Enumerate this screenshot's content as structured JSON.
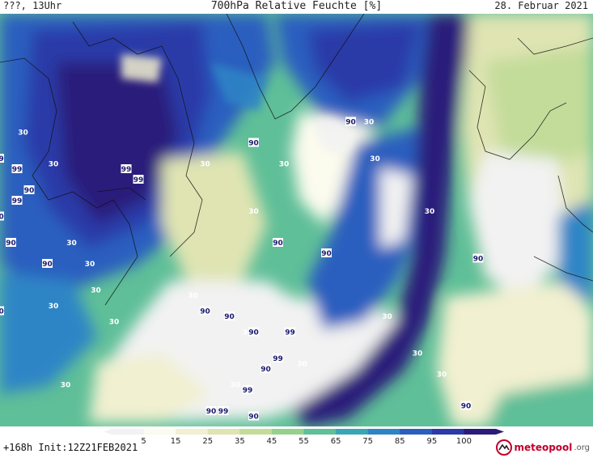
{
  "header": {
    "left": "???, 13Uhr",
    "title": "700hPa Relative Feuchte [%]",
    "date": "28. Februar 2021"
  },
  "footer": {
    "run": "+168h  Init:12Z21FEB2021"
  },
  "logo": {
    "name": "meteopool",
    "suffix": ".org"
  },
  "legend": {
    "ticks": [
      "5",
      "15",
      "25",
      "35",
      "45",
      "55",
      "65",
      "75",
      "85",
      "95",
      "100"
    ],
    "colors": [
      "#f2f2f2",
      "#fbfbee",
      "#f1f0d0",
      "#dfe4b2",
      "#c3dc9a",
      "#97d08c",
      "#5fbf98",
      "#3aa6b4",
      "#2d85c6",
      "#2b5fbf",
      "#2b3aa8",
      "#2c1b7a"
    ]
  },
  "map_labels": [
    {
      "v": "99",
      "lon": -70,
      "lat": 74
    },
    {
      "v": "90",
      "lon": -75,
      "lat": 64
    },
    {
      "v": "99",
      "lon": -66,
      "lat": 60
    },
    {
      "v": "99",
      "lon": -49,
      "lat": 63
    },
    {
      "v": "99",
      "lon": -46,
      "lat": 61
    },
    {
      "v": "90",
      "lon": -44,
      "lat": 57
    },
    {
      "v": "99",
      "lon": -46,
      "lat": 55
    },
    {
      "v": "90",
      "lon": -49,
      "lat": 52
    },
    {
      "v": "99",
      "lon": -58,
      "lat": 48
    },
    {
      "v": "90",
      "lon": -47,
      "lat": 47
    },
    {
      "v": "90",
      "lon": -62,
      "lat": 45
    },
    {
      "v": "90",
      "lon": -41,
      "lat": 43
    },
    {
      "v": "99",
      "lon": -52,
      "lat": 40
    },
    {
      "v": "30",
      "lon": -72,
      "lat": 43
    },
    {
      "v": "90",
      "lon": -49,
      "lat": 34
    },
    {
      "v": "90",
      "lon": -62,
      "lat": 31
    },
    {
      "v": "99",
      "lon": -69,
      "lat": 28
    },
    {
      "v": "90",
      "lon": -53,
      "lat": 25
    },
    {
      "v": "30",
      "lon": -58,
      "lat": 19
    },
    {
      "v": "30",
      "lon": -64,
      "lat": 16
    },
    {
      "v": "30",
      "lon": -40,
      "lat": 35
    },
    {
      "v": "30",
      "lon": -37,
      "lat": 47
    },
    {
      "v": "30",
      "lon": -34,
      "lat": 43
    },
    {
      "v": "30",
      "lon": -33,
      "lat": 38
    },
    {
      "v": "30",
      "lon": -45,
      "lat": 68
    },
    {
      "v": "30",
      "lon": -40,
      "lat": 62
    },
    {
      "v": "30",
      "lon": -30,
      "lat": 32
    },
    {
      "v": "30",
      "lon": -38,
      "lat": 20
    },
    {
      "v": "99",
      "lon": -28,
      "lat": 61
    },
    {
      "v": "99",
      "lon": -26,
      "lat": 59
    },
    {
      "v": "30",
      "lon": -15,
      "lat": 62
    },
    {
      "v": "90",
      "lon": -7,
      "lat": 66
    },
    {
      "v": "30",
      "lon": -2,
      "lat": 62
    },
    {
      "v": "30",
      "lon": -7,
      "lat": 53
    },
    {
      "v": "90",
      "lon": -3,
      "lat": 47
    },
    {
      "v": "30",
      "lon": -17,
      "lat": 37
    },
    {
      "v": "90",
      "lon": -15,
      "lat": 34
    },
    {
      "v": "90",
      "lon": -11,
      "lat": 33
    },
    {
      "v": "30",
      "lon": -8,
      "lat": 30
    },
    {
      "v": "90",
      "lon": -7,
      "lat": 30
    },
    {
      "v": "99",
      "lon": -1,
      "lat": 30
    },
    {
      "v": "99",
      "lon": -3,
      "lat": 25
    },
    {
      "v": "90",
      "lon": -5,
      "lat": 23
    },
    {
      "v": "30",
      "lon": 1,
      "lat": 24
    },
    {
      "v": "30",
      "lon": -10,
      "lat": 20
    },
    {
      "v": "99",
      "lon": -8,
      "lat": 19
    },
    {
      "v": "90",
      "lon": -14,
      "lat": 15
    },
    {
      "v": "99",
      "lon": -12,
      "lat": 15
    },
    {
      "v": "90",
      "lon": -7,
      "lat": 14
    },
    {
      "v": "90",
      "lon": 9,
      "lat": 70
    },
    {
      "v": "30",
      "lon": 12,
      "lat": 70
    },
    {
      "v": "30",
      "lon": 13,
      "lat": 63
    },
    {
      "v": "30",
      "lon": 22,
      "lat": 53
    },
    {
      "v": "90",
      "lon": 5,
      "lat": 45
    },
    {
      "v": "90",
      "lon": 30,
      "lat": 44
    },
    {
      "v": "30",
      "lon": 15,
      "lat": 33
    },
    {
      "v": "30",
      "lon": 20,
      "lat": 26
    },
    {
      "v": "30",
      "lon": 24,
      "lat": 22
    },
    {
      "v": "90",
      "lon": 28,
      "lat": 16
    }
  ]
}
